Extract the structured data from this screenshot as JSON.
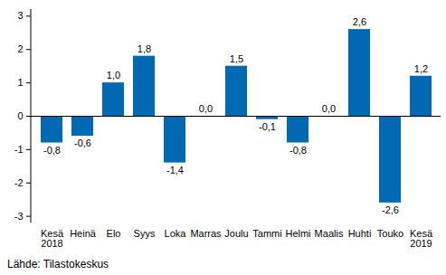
{
  "chart_data": {
    "type": "bar",
    "categories": [
      "Kesä\n2018",
      "Heinä",
      "Elo",
      "Syys",
      "Loka",
      "Marras",
      "Joulu",
      "Tammi",
      "Helmi",
      "Maalis",
      "Huhti",
      "Touko",
      "Kesä\n2019"
    ],
    "values": [
      -0.8,
      -0.6,
      1.0,
      1.8,
      -1.4,
      0.0,
      1.5,
      -0.1,
      -0.8,
      0.0,
      2.6,
      -2.6,
      1.2
    ],
    "value_labels": [
      "-0,8",
      "-0,6",
      "1,0",
      "1,8",
      "-1,4",
      "0,0",
      "1,5",
      "-0,1",
      "-0,8",
      "0,0",
      "2,6",
      "-2,6",
      "1,2"
    ],
    "data_labels": true,
    "color": "#0069b4",
    "ylim": [
      -3.2,
      3.2
    ],
    "yticks": [
      -3,
      -2,
      -1,
      0,
      1,
      2,
      3
    ],
    "grid": false,
    "caption": "Lähde: Tilastokeskus"
  }
}
